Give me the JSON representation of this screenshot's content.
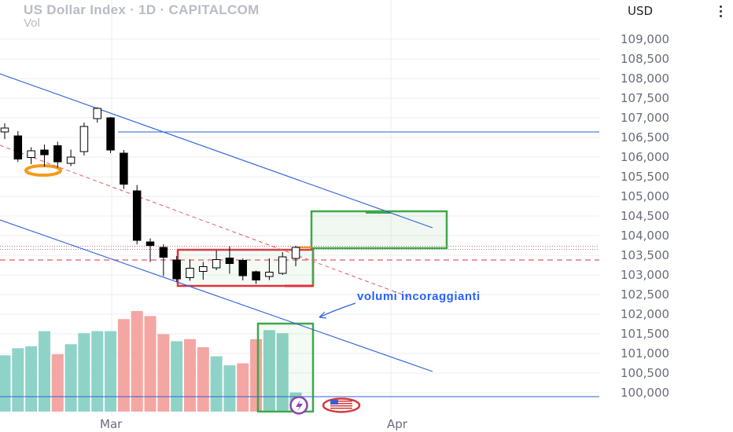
{
  "header": {
    "title": "US Dollar Index · 1D · CAPITALCOM",
    "subtitle": "Vol",
    "currency": "USD"
  },
  "annotation": "volumi incoraggianti",
  "colors": {
    "up": "#ffffff",
    "down": "#000000",
    "vol_up": "#8fd3c8",
    "vol_down": "#f4a6a2",
    "channel": "#2e62d9",
    "mid": "#e05a63",
    "green_box": "#3ea84a",
    "red_box": "#e0313b",
    "orange": "#f49a1d",
    "grid": "#edeef1"
  },
  "chart_data": {
    "type": "candlestick",
    "ylim": [
      99800,
      109500
    ],
    "yticks": [
      "100,000",
      "100,500",
      "101,000",
      "101,500",
      "102,000",
      "102,500",
      "103,000",
      "103,500",
      "104,000",
      "104,500",
      "105,000",
      "105,500",
      "106,000",
      "106,500",
      "107,000",
      "107,500",
      "108,000",
      "108,500",
      "109,000"
    ],
    "xticks": [
      "Mar",
      "Apr"
    ],
    "candles": [
      {
        "o": 106640,
        "h": 106860,
        "l": 106460,
        "c": 106740
      },
      {
        "o": 106540,
        "h": 106660,
        "l": 105880,
        "c": 105950
      },
      {
        "o": 105990,
        "h": 106250,
        "l": 105820,
        "c": 106160
      },
      {
        "o": 106180,
        "h": 106320,
        "l": 105760,
        "c": 106060
      },
      {
        "o": 106290,
        "h": 106390,
        "l": 105730,
        "c": 105880
      },
      {
        "o": 105840,
        "h": 106190,
        "l": 105770,
        "c": 106000
      },
      {
        "o": 106140,
        "h": 106880,
        "l": 106040,
        "c": 106780
      },
      {
        "o": 106980,
        "h": 107270,
        "l": 106880,
        "c": 107240
      },
      {
        "o": 107000,
        "h": 107020,
        "l": 106100,
        "c": 106180
      },
      {
        "o": 106100,
        "h": 106180,
        "l": 105190,
        "c": 105310
      },
      {
        "o": 105140,
        "h": 105290,
        "l": 103780,
        "c": 103880
      },
      {
        "o": 103840,
        "h": 103930,
        "l": 103330,
        "c": 103750
      },
      {
        "o": 103700,
        "h": 103780,
        "l": 102970,
        "c": 103450
      },
      {
        "o": 103380,
        "h": 103480,
        "l": 102830,
        "c": 102900
      },
      {
        "o": 102930,
        "h": 103390,
        "l": 102850,
        "c": 103170
      },
      {
        "o": 103090,
        "h": 103330,
        "l": 102880,
        "c": 103210
      },
      {
        "o": 103180,
        "h": 103620,
        "l": 103120,
        "c": 103390
      },
      {
        "o": 103430,
        "h": 103730,
        "l": 103030,
        "c": 103290
      },
      {
        "o": 103370,
        "h": 103420,
        "l": 102860,
        "c": 102980
      },
      {
        "o": 103080,
        "h": 103110,
        "l": 102770,
        "c": 102870
      },
      {
        "o": 102960,
        "h": 103420,
        "l": 102870,
        "c": 103070
      },
      {
        "o": 103040,
        "h": 103580,
        "l": 103000,
        "c": 103460
      },
      {
        "o": 103420,
        "h": 103740,
        "l": 103220,
        "c": 103700
      }
    ],
    "volume": {
      "values": [
        0.56,
        0.63,
        0.65,
        0.8,
        0.57,
        0.67,
        0.78,
        0.8,
        0.8,
        0.92,
        1.0,
        0.95,
        0.77,
        0.7,
        0.72,
        0.64,
        0.55,
        0.46,
        0.48,
        0.72,
        0.81,
        0.78,
        0.19
      ],
      "direction": [
        "up",
        "up",
        "up",
        "up",
        "down",
        "up",
        "up",
        "up",
        "up",
        "down",
        "down",
        "down",
        "down",
        "up",
        "down",
        "down",
        "up",
        "up",
        "down",
        "down",
        "up",
        "up",
        "up"
      ]
    },
    "levels": {
      "resistance": 106640,
      "support": 99900,
      "dotted": [
        103650,
        103730
      ],
      "dashed": 103380
    },
    "grid": true
  }
}
